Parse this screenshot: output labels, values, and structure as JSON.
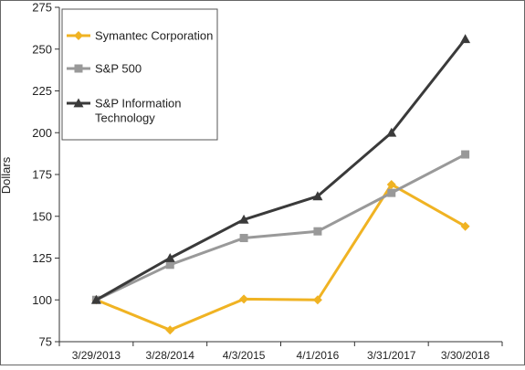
{
  "chart_data": {
    "type": "line",
    "title": "",
    "xlabel": "",
    "ylabel": "Dollars",
    "ylim": [
      75,
      275
    ],
    "yticks": [
      75,
      100,
      125,
      150,
      175,
      200,
      225,
      250,
      275
    ],
    "categories": [
      "3/29/2013",
      "3/28/2014",
      "4/3/2015",
      "4/1/2016",
      "3/31/2017",
      "3/30/2018"
    ],
    "grid": false,
    "legend_position": "top-left",
    "series": [
      {
        "name": "Symantec Corporation",
        "color": "#f0b323",
        "marker": "diamond",
        "values": [
          100,
          82,
          100.5,
          100,
          169,
          144
        ]
      },
      {
        "name": "S&P 500",
        "color": "#999999",
        "marker": "square",
        "values": [
          100,
          121,
          137,
          141,
          164,
          187
        ]
      },
      {
        "name": "S&P Information Technology",
        "color": "#3a3a3a",
        "marker": "triangle",
        "legend_lines": [
          "S&P Information",
          "Technology"
        ],
        "values": [
          100,
          125,
          148,
          162,
          200,
          256
        ]
      }
    ]
  }
}
